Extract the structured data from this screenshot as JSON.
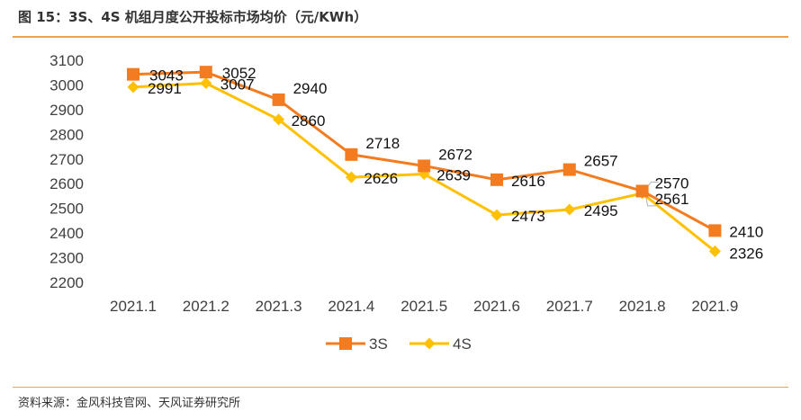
{
  "title": "图 15：3S、4S 机组月度公开投标市场均价（元/KWh）",
  "source": "资料来源：金风科技官网、天风证券研究所",
  "chart_data": {
    "type": "line",
    "categories": [
      "2021.1",
      "2021.2",
      "2021.3",
      "2021.4",
      "2021.5",
      "2021.6",
      "2021.7",
      "2021.8",
      "2021.9"
    ],
    "series": [
      {
        "name": "3S",
        "color": "#f47c20",
        "marker": "square",
        "values": [
          3043,
          3052,
          2940,
          2718,
          2672,
          2616,
          2657,
          2570,
          2410
        ]
      },
      {
        "name": "4S",
        "color": "#ffc000",
        "marker": "diamond",
        "values": [
          2991,
          3007,
          2860,
          2626,
          2639,
          2473,
          2495,
          2561,
          2326
        ]
      }
    ],
    "ylim": [
      2200,
      3100
    ],
    "yticks": [
      2200,
      2300,
      2400,
      2500,
      2600,
      2700,
      2800,
      2900,
      3000,
      3100
    ],
    "legend_position": "bottom-center",
    "grid": false
  }
}
